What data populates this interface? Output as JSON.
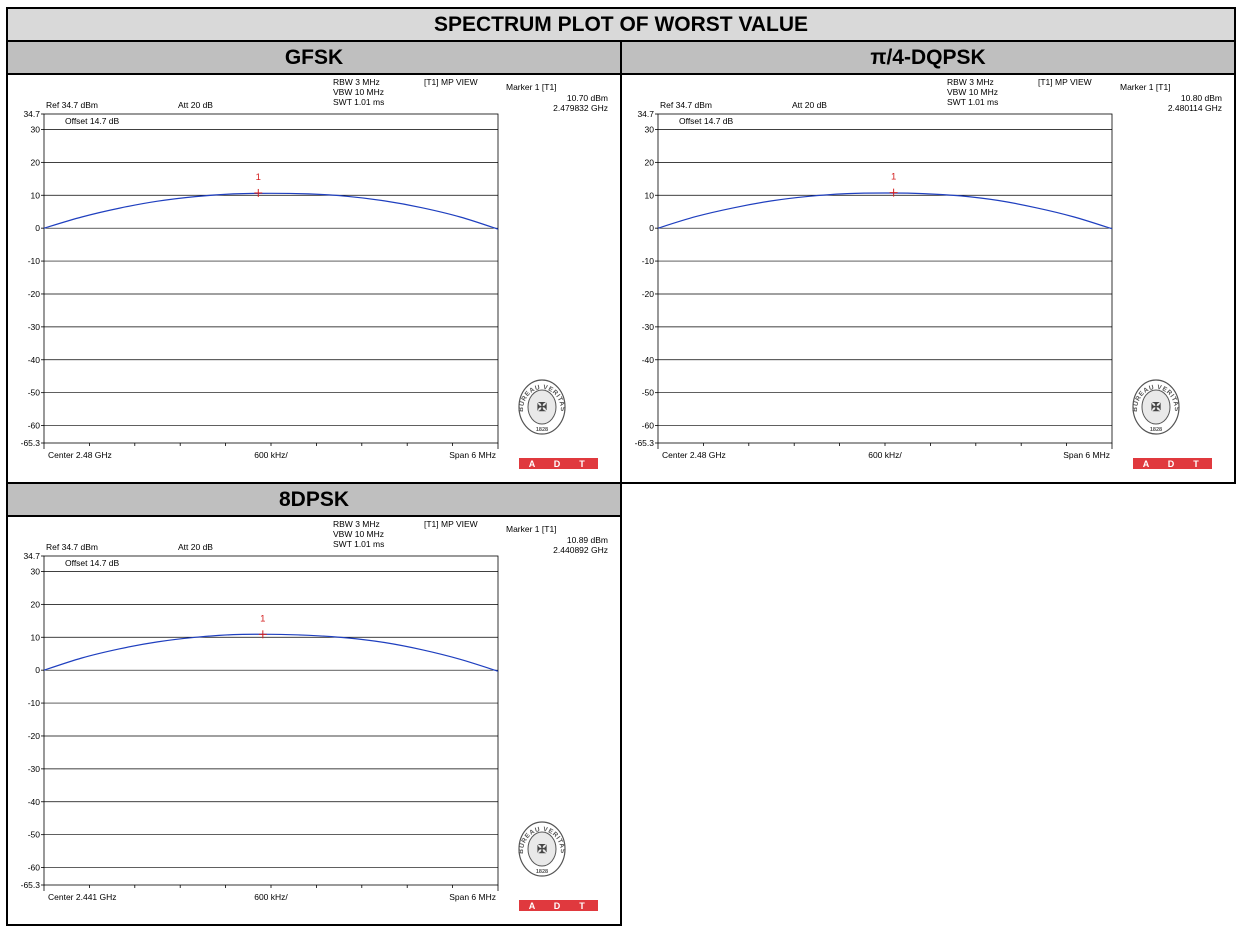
{
  "page": {
    "title": "SPECTRUM PLOT OF WORST VALUE"
  },
  "brand": {
    "logo_text": "BUREAU VERITAS",
    "logo_year": "1828",
    "adt_letters": [
      "A",
      "D",
      "T"
    ],
    "adt_color": "#e0393e"
  },
  "colors": {
    "trace": "#1f3fbf",
    "marker": "#d42020",
    "grid": "#000000"
  },
  "chart_data": [
    {
      "type": "line",
      "mode": "GFSK",
      "rbw": "RBW 3 MHz",
      "vbw": "VBW 10 MHz",
      "swt": "SWT 1.01 ms",
      "view": "[T1] MP VIEW",
      "marker_title": "Marker 1 [T1]",
      "marker_level": "10.70 dBm",
      "marker_freq": "2.479832 GHz",
      "marker_label": "1",
      "ref": "Ref 34.7 dBm",
      "att": "Att  20 dB",
      "offset": "Offset 14.7 dB",
      "center": "Center 2.48 GHz",
      "per_div": "600 kHz/",
      "span": "Span 6 MHz",
      "y_top_label": "34.7",
      "y_bottom_label": "-65.3",
      "y_ticks": [
        30,
        20,
        10,
        0,
        -10,
        -20,
        -30,
        -40,
        -50,
        -60
      ],
      "ylim": [
        -65.3,
        34.7
      ],
      "xlim": [
        2.477,
        2.483
      ],
      "marker_x": 2.479832,
      "marker_y": 10.7,
      "x": [
        2.477,
        2.4775,
        2.478,
        2.4785,
        2.479,
        2.4795,
        2.48,
        2.4805,
        2.481,
        2.4815,
        2.482,
        2.4825,
        2.483
      ],
      "values": [
        0.0,
        3.4,
        6.1,
        8.2,
        9.6,
        10.4,
        10.6,
        10.4,
        9.7,
        8.3,
        6.2,
        3.4,
        -0.3
      ]
    },
    {
      "type": "line",
      "mode": "π/4-DQPSK",
      "rbw": "RBW 3 MHz",
      "vbw": "VBW 10 MHz",
      "swt": "SWT 1.01 ms",
      "view": "[T1] MP VIEW",
      "marker_title": "Marker 1 [T1]",
      "marker_level": "10.80 dBm",
      "marker_freq": "2.480114 GHz",
      "marker_label": "1",
      "ref": "Ref 34.7 dBm",
      "att": "Att  20 dB",
      "offset": "Offset 14.7 dB",
      "center": "Center 2.48 GHz",
      "per_div": "600 kHz/",
      "span": "Span 6 MHz",
      "y_top_label": "34.7",
      "y_bottom_label": "-65.3",
      "y_ticks": [
        30,
        20,
        10,
        0,
        -10,
        -20,
        -30,
        -40,
        -50,
        -60
      ],
      "ylim": [
        -65.3,
        34.7
      ],
      "xlim": [
        2.477,
        2.483
      ],
      "marker_x": 2.480114,
      "marker_y": 10.8,
      "x": [
        2.477,
        2.4775,
        2.478,
        2.4785,
        2.479,
        2.4795,
        2.48,
        2.4805,
        2.481,
        2.4815,
        2.482,
        2.4825,
        2.483
      ],
      "values": [
        0.0,
        3.5,
        6.2,
        8.3,
        9.7,
        10.5,
        10.7,
        10.5,
        9.8,
        8.4,
        6.2,
        3.4,
        -0.2
      ]
    },
    {
      "type": "line",
      "mode": "8DPSK",
      "rbw": "RBW 3 MHz",
      "vbw": "VBW 10 MHz",
      "swt": "SWT 1.01 ms",
      "view": "[T1] MP VIEW",
      "marker_title": "Marker 1 [T1]",
      "marker_level": "10.89 dBm",
      "marker_freq": "2.440892 GHz",
      "marker_label": "1",
      "ref": "Ref 34.7 dBm",
      "att": "Att  20 dB",
      "offset": "Offset 14.7 dB",
      "center": "Center 2.441 GHz",
      "per_div": "600 kHz/",
      "span": "Span 6 MHz",
      "y_top_label": "34.7",
      "y_bottom_label": "-65.3",
      "y_ticks": [
        30,
        20,
        10,
        0,
        -10,
        -20,
        -30,
        -40,
        -50,
        -60
      ],
      "ylim": [
        -65.3,
        34.7
      ],
      "xlim": [
        2.438,
        2.444
      ],
      "marker_x": 2.440892,
      "marker_y": 10.89,
      "x": [
        2.438,
        2.4385,
        2.439,
        2.4395,
        2.44,
        2.4405,
        2.441,
        2.4415,
        2.442,
        2.4425,
        2.443,
        2.4435,
        2.444
      ],
      "values": [
        0.0,
        3.7,
        6.5,
        8.6,
        10.0,
        10.8,
        10.9,
        10.6,
        9.8,
        8.4,
        6.2,
        3.3,
        -0.3
      ]
    }
  ]
}
